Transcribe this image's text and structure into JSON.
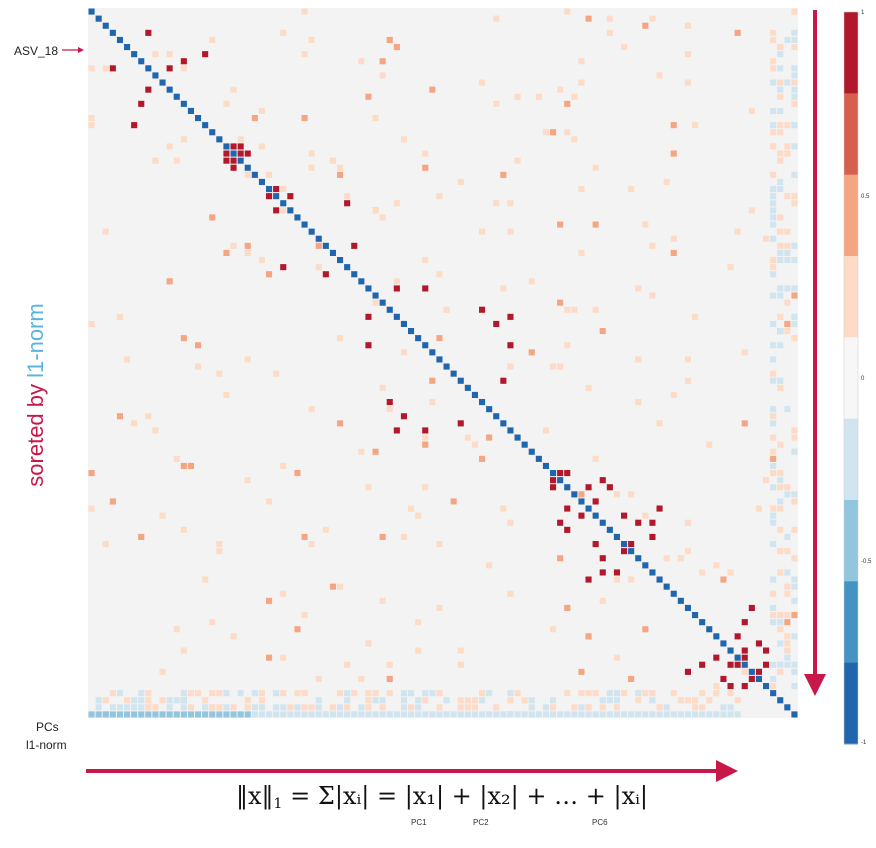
{
  "labels": {
    "asv_highlight": "ASV_18",
    "pcs_row": "PCs",
    "l1_row": "l1-norm",
    "title_prefix": "soreted by ",
    "title_suffix": "l1-norm"
  },
  "formula": {
    "lhs": "‖x‖",
    "rhs": "= Σ|xᵢ| = |x₁| + |x₂| + … + |xᵢ|",
    "pc_labels": [
      "PC1",
      "PC2",
      "PC6"
    ]
  },
  "colors": {
    "title_red": "#c8184a",
    "title_blue": "#5ab4e0",
    "arrow": "#c8184a",
    "diagonal": "#2a6cb0",
    "background_cell": "#f3f3f3"
  },
  "chart_data": {
    "type": "heatmap",
    "title": "",
    "xlabel": "",
    "ylabel": "soreted by l1-norm",
    "value_range": [
      -1,
      1
    ],
    "n_asv": 100,
    "diagonal_value": -1,
    "colorbar": {
      "ticks": [
        {
          "value": 1,
          "label": "1"
        },
        {
          "value": 0.5,
          "label": "0.5"
        },
        {
          "value": 0,
          "label": "0"
        },
        {
          "value": -0.5,
          "label": "-0.5"
        },
        {
          "value": -1,
          "label": "-1"
        }
      ],
      "bins": [
        {
          "from": 0.8,
          "to": 1.0,
          "color": "#b2182b"
        },
        {
          "from": 0.6,
          "to": 0.8,
          "color": "#d6604d"
        },
        {
          "from": 0.4,
          "to": 0.6,
          "color": "#f4a582"
        },
        {
          "from": 0.2,
          "to": 0.4,
          "color": "#fddbc7"
        },
        {
          "from": -0.2,
          "to": 0.2,
          "color": "#f7f7f7"
        },
        {
          "from": -0.4,
          "to": -0.2,
          "color": "#d1e5f0"
        },
        {
          "from": -0.6,
          "to": -0.4,
          "color": "#92c5de"
        },
        {
          "from": -0.8,
          "to": -0.6,
          "color": "#4393c3"
        },
        {
          "from": -1.0,
          "to": -0.8,
          "color": "#2166ac"
        }
      ]
    },
    "strong_positive_pairs": [
      [
        11,
        8
      ],
      [
        8,
        3
      ],
      [
        7,
        13
      ],
      [
        6,
        16
      ],
      [
        19,
        20
      ],
      [
        20,
        21
      ],
      [
        21,
        19
      ],
      [
        22,
        20
      ],
      [
        26,
        25
      ],
      [
        28,
        26
      ],
      [
        27,
        36
      ],
      [
        37,
        33
      ],
      [
        39,
        47
      ],
      [
        43,
        39
      ],
      [
        44,
        57
      ],
      [
        47,
        59
      ],
      [
        52,
        58
      ],
      [
        55,
        42
      ],
      [
        59,
        43
      ],
      [
        65,
        66
      ],
      [
        65,
        67
      ],
      [
        67,
        70
      ],
      [
        66,
        72
      ],
      [
        67,
        73
      ],
      [
        69,
        71
      ],
      [
        72,
        77
      ],
      [
        72,
        79
      ],
      [
        71,
        75
      ],
      [
        74,
        79
      ],
      [
        75,
        76
      ],
      [
        70,
        80
      ],
      [
        84,
        93
      ],
      [
        86,
        92
      ],
      [
        88,
        91
      ],
      [
        89,
        89
      ],
      [
        90,
        95
      ],
      [
        91,
        92
      ],
      [
        92,
        90
      ],
      [
        93,
        94
      ],
      [
        94,
        89
      ],
      [
        95,
        92
      ]
    ]
  }
}
